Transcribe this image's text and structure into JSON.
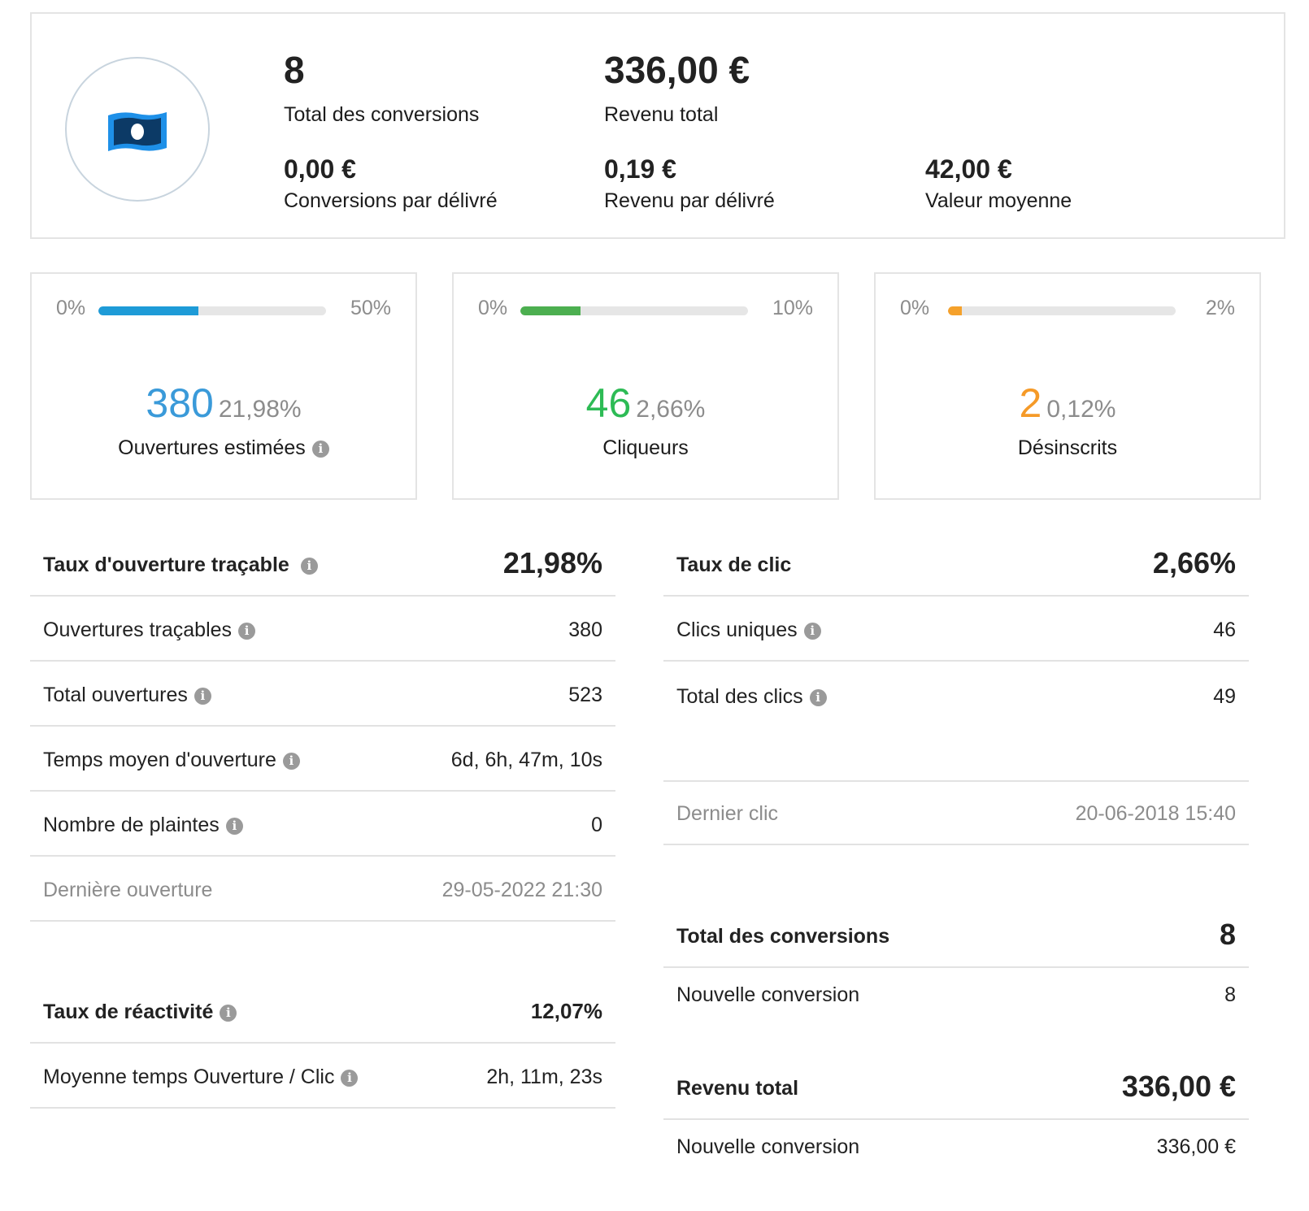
{
  "summary": {
    "total_conversions": {
      "value": "8",
      "label": "Total des conversions"
    },
    "total_revenue": {
      "value": "336,00 €",
      "label": "Revenu total"
    },
    "conversions_per_delivered": {
      "value": "0,00 €",
      "label": "Conversions par délivré"
    },
    "revenue_per_delivered": {
      "value": "0,19 €",
      "label": "Revenu par délivré"
    },
    "average_value": {
      "value": "42,00 €",
      "label": "Valeur moyenne"
    }
  },
  "cards": [
    {
      "min": "0%",
      "max": "50%",
      "progress_fraction": 0.4396,
      "color": "#1e9bd7",
      "number": "380",
      "number_color": "#3a9ad9",
      "percent": "21,98%",
      "caption": "Ouvertures estimées",
      "has_info": true
    },
    {
      "min": "0%",
      "max": "10%",
      "progress_fraction": 0.266,
      "color": "#4caf50",
      "number": "46",
      "number_color": "#2dbb55",
      "percent": "2,66%",
      "caption": "Cliqueurs",
      "has_info": false
    },
    {
      "min": "0%",
      "max": "2%",
      "progress_fraction": 0.06,
      "color": "#f5a12b",
      "number": "2",
      "number_color": "#f59a28",
      "percent": "0,12%",
      "caption": "Désinscrits",
      "has_info": false
    }
  ],
  "open_stats": {
    "header": {
      "label": "Taux d'ouverture traçable",
      "value": "21,98%"
    },
    "rows": [
      {
        "label": "Ouvertures traçables",
        "value": "380"
      },
      {
        "label": "Total ouvertures",
        "value": "523"
      },
      {
        "label": "Temps moyen d'ouverture",
        "value": "6d, 6h, 47m, 10s"
      },
      {
        "label": "Nombre de plaintes",
        "value": "0"
      }
    ],
    "last_open": {
      "label": "Dernière ouverture",
      "value": "29-05-2022 21:30"
    }
  },
  "reactivity": {
    "header": {
      "label": "Taux de réactivité",
      "value": "12,07%"
    },
    "row": {
      "label": "Moyenne temps Ouverture / Clic",
      "value": "2h, 11m, 23s"
    }
  },
  "click_stats": {
    "header": {
      "label": "Taux de clic",
      "value": "2,66%"
    },
    "rows": [
      {
        "label": "Clics uniques",
        "value": "46"
      },
      {
        "label": "Total des clics",
        "value": "49"
      }
    ],
    "last_click": {
      "label": "Dernier clic",
      "value": "20-06-2018 15:40"
    }
  },
  "conversions": {
    "header": {
      "label": "Total des conversions",
      "value": "8"
    },
    "row": {
      "label": "Nouvelle conversion",
      "value": "8"
    }
  },
  "revenue": {
    "header": {
      "label": "Revenu total",
      "value": "336,00 €"
    },
    "row": {
      "label": "Nouvelle conversion",
      "value": "336,00 €"
    }
  },
  "info_icon_glyph": "i"
}
